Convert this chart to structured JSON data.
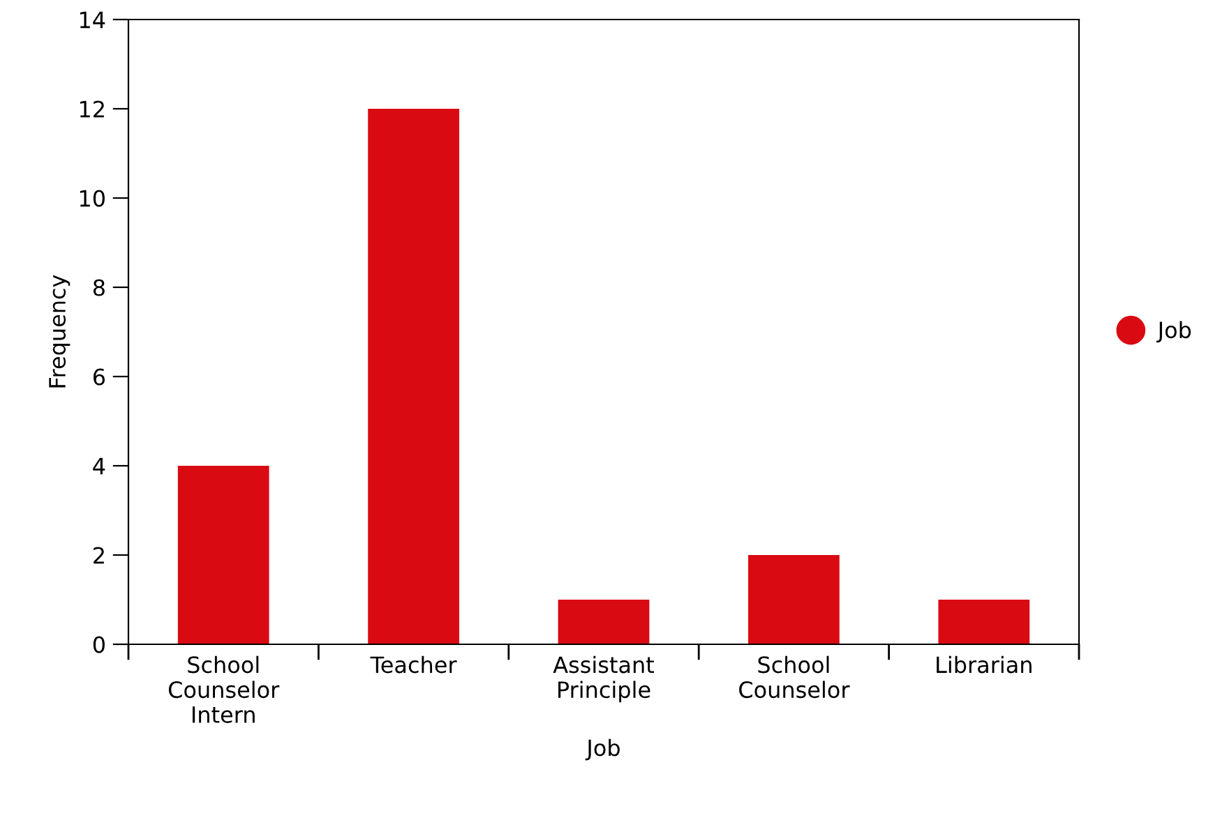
{
  "chart_data": {
    "type": "bar",
    "xlabel": "Job",
    "ylabel": "Frequency",
    "categories": [
      "School\nCounselor\nIntern",
      "Teacher",
      "Assistant\nPrinciple",
      "School\nCounselor",
      "Librarian"
    ],
    "series": [
      {
        "name": "Job",
        "color": "#d90a12",
        "values": [
          4,
          12,
          1,
          2,
          1
        ]
      }
    ],
    "ylim": [
      0,
      14
    ],
    "yticks": [
      0,
      2,
      4,
      6,
      8,
      10,
      12,
      14
    ],
    "grid": false,
    "legend": "right",
    "marker": "circle"
  }
}
